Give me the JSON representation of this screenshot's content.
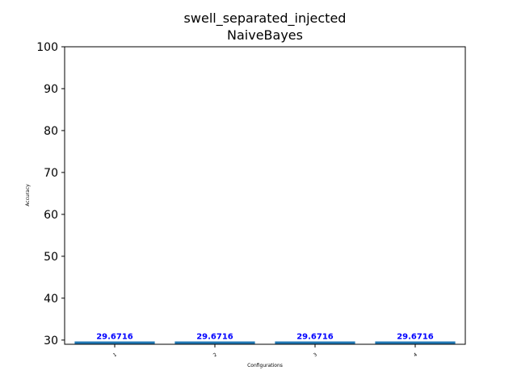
{
  "chart_data": {
    "type": "bar",
    "title": "swell_separated_injected",
    "subtitle": "NaiveBayes",
    "xlabel": "Configurations",
    "ylabel": "Accuracy",
    "categories": [
      "1",
      "2",
      "3",
      "4"
    ],
    "values": [
      29.6716,
      29.6716,
      29.6716,
      29.6716
    ],
    "data_labels": [
      "29.6716",
      "29.6716",
      "29.6716",
      "29.6716"
    ],
    "ylim": [
      29,
      100
    ],
    "yticks": [
      30,
      40,
      50,
      60,
      70,
      80,
      90,
      100
    ],
    "grid": false,
    "bar_color": "#1f77b4",
    "label_color": "#0000ff"
  }
}
